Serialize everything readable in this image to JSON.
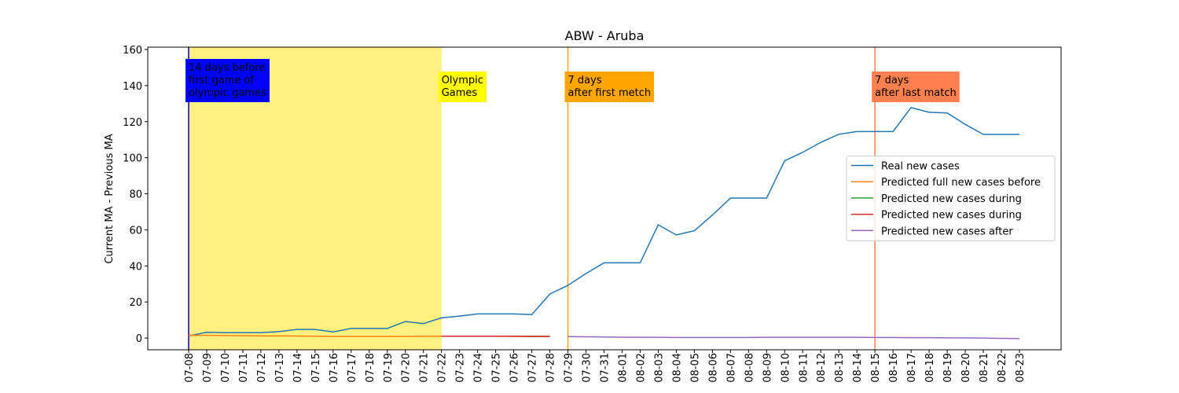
{
  "chart_data": {
    "type": "line",
    "title": "ABW - Aruba",
    "ylabel": "Current MA - Previous MA",
    "categories": [
      "07-08",
      "07-09",
      "07-10",
      "07-11",
      "07-12",
      "07-13",
      "07-14",
      "07-15",
      "07-16",
      "07-17",
      "07-18",
      "07-19",
      "07-20",
      "07-21",
      "07-22",
      "07-23",
      "07-24",
      "07-25",
      "07-26",
      "07-27",
      "07-28",
      "07-29",
      "07-30",
      "07-31",
      "08-01",
      "08-02",
      "08-03",
      "08-04",
      "08-05",
      "08-06",
      "08-07",
      "08-08",
      "08-09",
      "08-10",
      "08-11",
      "08-12",
      "08-13",
      "08-14",
      "08-15",
      "08-16",
      "08-17",
      "08-18",
      "08-19",
      "08-20",
      "08-21",
      "08-22",
      "08-23"
    ],
    "series": [
      {
        "name": "Real new cases",
        "color": "#1f77b4",
        "values": [
          1.2,
          3.2,
          3,
          3,
          3,
          3.6,
          4.8,
          4.8,
          3.4,
          5.3,
          5.3,
          5.3,
          9.2,
          8,
          11.2,
          12.2,
          13.4,
          13.4,
          13.4,
          13,
          24.4,
          29.2,
          35.8,
          41.7,
          41.7,
          41.7,
          62.8,
          57.2,
          59.5,
          68.2,
          77.6,
          77.6,
          77.6,
          98.3,
          103,
          108.5,
          113,
          114.5,
          114.5,
          114.5,
          127.8,
          125.2,
          124.8,
          118.5,
          112.9,
          112.9,
          112.9
        ]
      },
      {
        "name": "Predicted full new cases before",
        "color": "#ff7f0e",
        "values": [
          1.5,
          1.5,
          1.4,
          1.3,
          1.2,
          1.2,
          1.1,
          1.0,
          0.9,
          0.9,
          0.9,
          0.9,
          0.9,
          1.0,
          1.0,
          1.0,
          1.0,
          1.0,
          0.9,
          0.9,
          0.8,
          null,
          null,
          null,
          null,
          null,
          null,
          null,
          null,
          null,
          null,
          null,
          null,
          null,
          null,
          null,
          null,
          null,
          null,
          null,
          null,
          null,
          null,
          null,
          null,
          null,
          null
        ]
      },
      {
        "name": "Predicted new cases during",
        "color": "#2ca02c",
        "values": [
          null,
          null,
          null,
          null,
          null,
          null,
          null,
          null,
          null,
          null,
          null,
          null,
          null,
          null,
          1.0,
          1.0,
          1.0,
          1.0,
          1.0,
          0.9,
          0.9,
          null,
          null,
          null,
          null,
          null,
          null,
          null,
          null,
          null,
          null,
          null,
          null,
          null,
          null,
          null,
          null,
          null,
          null,
          null,
          null,
          null,
          null,
          null,
          null,
          null,
          null
        ]
      },
      {
        "name": "Predicted new cases during",
        "color": "#d62728",
        "values": [
          null,
          null,
          null,
          null,
          null,
          null,
          null,
          null,
          null,
          null,
          null,
          null,
          null,
          null,
          1.0,
          1.0,
          1.0,
          1.0,
          1.0,
          0.9,
          0.9,
          null,
          null,
          null,
          null,
          null,
          null,
          null,
          null,
          null,
          null,
          null,
          null,
          null,
          null,
          null,
          null,
          null,
          null,
          null,
          null,
          null,
          null,
          null,
          null,
          null,
          null
        ]
      },
      {
        "name": "Predicted new cases after",
        "color": "#9467bd",
        "values": [
          null,
          null,
          null,
          null,
          null,
          null,
          null,
          null,
          null,
          null,
          null,
          null,
          null,
          null,
          null,
          null,
          null,
          null,
          null,
          null,
          null,
          0.8,
          0.7,
          0.6,
          0.5,
          0.4,
          0.4,
          0.3,
          0.3,
          0.3,
          0.3,
          0.3,
          0.4,
          0.4,
          0.4,
          0.4,
          0.4,
          0.4,
          0.3,
          0.3,
          0.2,
          0.2,
          0.1,
          0.1,
          0.0,
          -0.2,
          -0.3
        ]
      }
    ],
    "ylim": [
      -6.5,
      161.3
    ],
    "yticks": [
      0,
      20,
      40,
      60,
      80,
      100,
      120,
      140,
      160
    ],
    "legend": "center right",
    "span": {
      "start": "07-08",
      "end": "07-22",
      "color": "#fff080"
    },
    "annotations": [
      {
        "x": "07-08",
        "line_color": "#0000cd",
        "box_color": "#0000ff",
        "text_color": "#ffffff",
        "lines": [
          "14 days before",
          "first game of",
          "olympic games"
        ]
      },
      {
        "x": "07-22",
        "box_color": "#ffff00",
        "text_color": "#000000",
        "lines": [
          "Olympic",
          "Games"
        ]
      },
      {
        "x": "07-29",
        "line_color": "#ffa500",
        "box_color": "#ffa500",
        "text_color": "#000000",
        "lines": [
          "7 days",
          "after first metch"
        ]
      },
      {
        "x": "08-15",
        "line_color": "#ff7f50",
        "box_color": "#ff7f50",
        "text_color": "#000000",
        "lines": [
          "7 days",
          "after last match"
        ]
      }
    ]
  }
}
